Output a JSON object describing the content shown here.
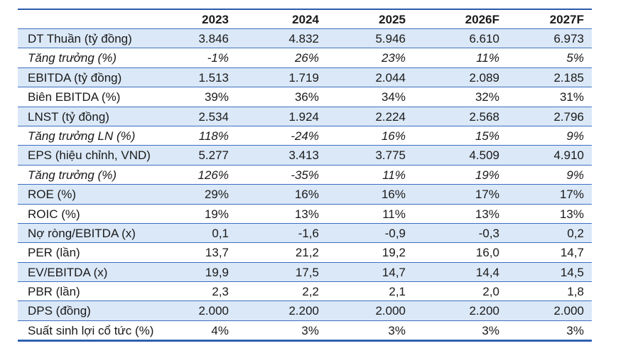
{
  "table": {
    "header": [
      "2023",
      "2024",
      "2025",
      "2026F",
      "2027F"
    ],
    "rows": [
      {
        "label": "DT Thuần (tỷ đồng)",
        "values": [
          "3.846",
          "4.832",
          "5.946",
          "6.610",
          "6.973"
        ]
      },
      {
        "label": "Tăng trưởng (%)",
        "values": [
          "-1%",
          "26%",
          "23%",
          "11%",
          "5%"
        ],
        "italic": true
      },
      {
        "label": "EBITDA (tỷ đồng)",
        "values": [
          "1.513",
          "1.719",
          "2.044",
          "2.089",
          "2.185"
        ]
      },
      {
        "label": "Biên EBITDA (%)",
        "values": [
          "39%",
          "36%",
          "34%",
          "32%",
          "31%"
        ]
      },
      {
        "label": "LNST (tỷ đồng)",
        "values": [
          "2.534",
          "1.924",
          "2.224",
          "2.568",
          "2.796"
        ]
      },
      {
        "label": "Tăng trưởng LN (%)",
        "values": [
          "118%",
          "-24%",
          "16%",
          "15%",
          "9%"
        ],
        "italic": true
      },
      {
        "label": "EPS (hiệu chỉnh, VND)",
        "values": [
          "5.277",
          "3.413",
          "3.775",
          "4.509",
          "4.910"
        ]
      },
      {
        "label": "Tăng trưởng (%)",
        "values": [
          "126%",
          "-35%",
          "11%",
          "19%",
          "9%"
        ],
        "italic": true
      },
      {
        "label": "ROE (%)",
        "values": [
          "29%",
          "16%",
          "16%",
          "17%",
          "17%"
        ]
      },
      {
        "label": "ROIC (%)",
        "values": [
          "19%",
          "13%",
          "11%",
          "13%",
          "13%"
        ]
      },
      {
        "label": "Nợ ròng/EBITDA (x)",
        "values": [
          "0,1",
          "-1,6",
          "-0,9",
          "-0,3",
          "0,2"
        ]
      },
      {
        "label": "PER (lần)",
        "values": [
          "13,7",
          "21,2",
          "19,2",
          "16,0",
          "14,7"
        ]
      },
      {
        "label": "EV/EBITDA (x)",
        "values": [
          "19,9",
          "17,5",
          "14,7",
          "14,4",
          "14,5"
        ]
      },
      {
        "label": "PBR (lần)",
        "values": [
          "2,3",
          "2,2",
          "2,1",
          "2,0",
          "1,8"
        ]
      },
      {
        "label": "DPS (đồng)",
        "values": [
          "2.000",
          "2.200",
          "2.000",
          "2.200",
          "2.000"
        ]
      },
      {
        "label": "Suất sinh lợi cổ tức (%)",
        "values": [
          "4%",
          "3%",
          "3%",
          "3%",
          "3%"
        ]
      }
    ]
  }
}
